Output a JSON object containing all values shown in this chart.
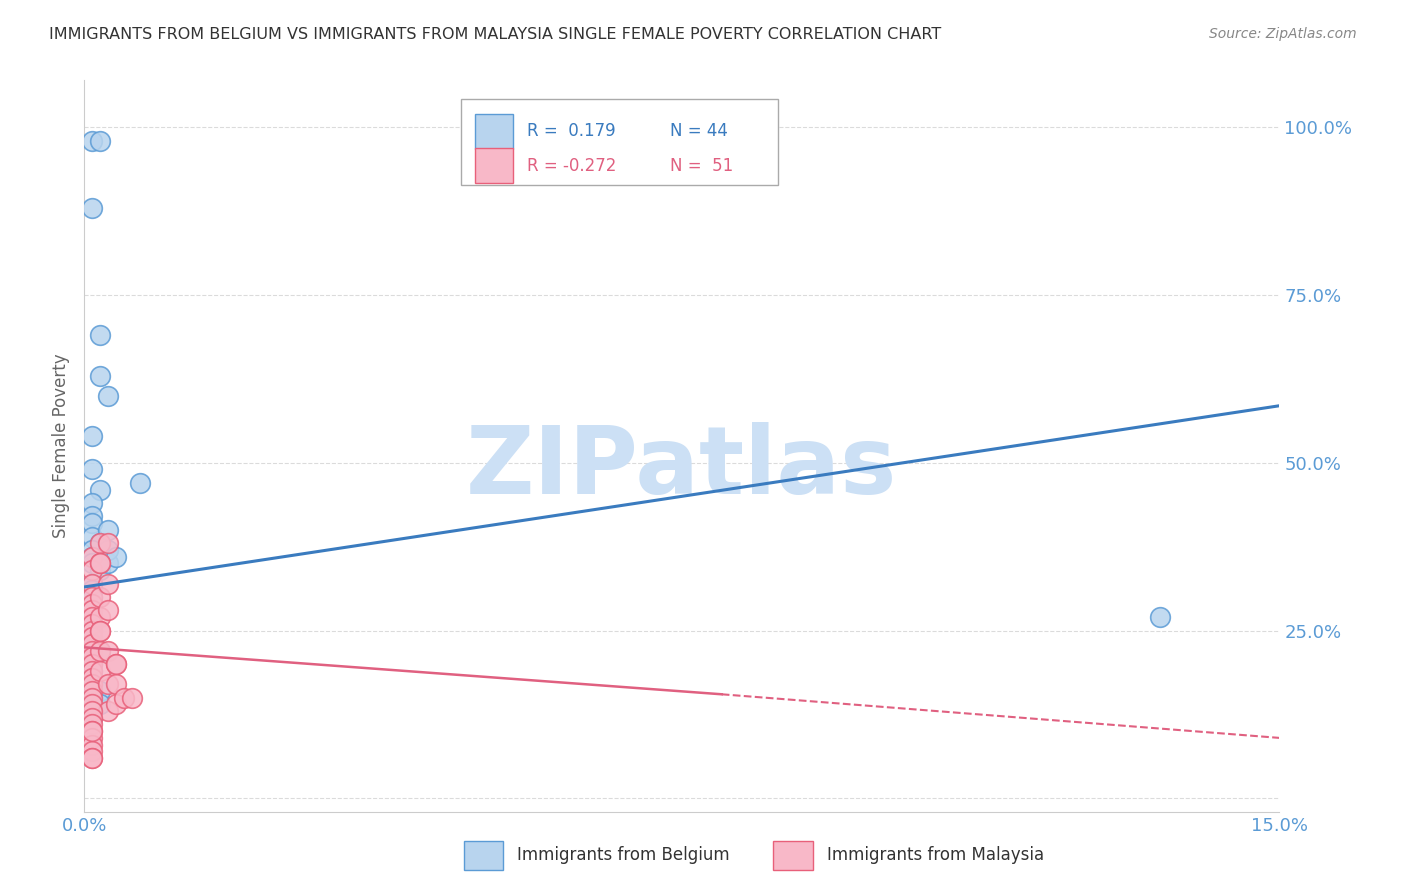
{
  "title": "IMMIGRANTS FROM BELGIUM VS IMMIGRANTS FROM MALAYSIA SINGLE FEMALE POVERTY CORRELATION CHART",
  "source": "Source: ZipAtlas.com",
  "ylabel": "Single Female Poverty",
  "xlim": [
    0.0,
    0.15
  ],
  "ylim": [
    -0.02,
    1.07
  ],
  "yticks": [
    0.0,
    0.25,
    0.5,
    0.75,
    1.0
  ],
  "ytick_labels": [
    "",
    "25.0%",
    "50.0%",
    "75.0%",
    "100.0%"
  ],
  "xticks": [
    0.0,
    0.03,
    0.06,
    0.09,
    0.12,
    0.15
  ],
  "xtick_labels": [
    "0.0%",
    "",
    "",
    "",
    "",
    "15.0%"
  ],
  "belgium_color": "#b8d4ee",
  "malaysia_color": "#f8b8c8",
  "belgium_edge": "#5b9bd5",
  "malaysia_edge": "#e8607a",
  "trend_belgium_color": "#3a7bbf",
  "trend_malaysia_color": "#e06080",
  "trend_belgium_x0": 0.0,
  "trend_belgium_y0": 0.315,
  "trend_belgium_x1": 0.15,
  "trend_belgium_y1": 0.585,
  "trend_malaysia_x0": 0.0,
  "trend_malaysia_y0": 0.225,
  "trend_malaysia_x1": 0.08,
  "trend_malaysia_y1": 0.155,
  "trend_malaysia_dash_x0": 0.08,
  "trend_malaysia_dash_y0": 0.155,
  "trend_malaysia_dash_x1": 0.15,
  "trend_malaysia_dash_y1": 0.09,
  "legend_R_belgium": "R =  0.179",
  "legend_N_belgium": "N = 44",
  "legend_R_malaysia": "R = -0.272",
  "legend_N_malaysia": "N =  51",
  "legend_label_belgium": "Immigrants from Belgium",
  "legend_label_malaysia": "Immigrants from Malaysia",
  "watermark": "ZIPatlas",
  "watermark_color": "#cce0f5",
  "background_color": "#ffffff",
  "belgium_x": [
    0.001,
    0.002,
    0.001,
    0.002,
    0.002,
    0.003,
    0.001,
    0.001,
    0.002,
    0.001,
    0.001,
    0.001,
    0.001,
    0.002,
    0.001,
    0.001,
    0.001,
    0.002,
    0.001,
    0.001,
    0.001,
    0.001,
    0.001,
    0.001,
    0.001,
    0.001,
    0.001,
    0.001,
    0.002,
    0.001,
    0.001,
    0.001,
    0.001,
    0.001,
    0.002,
    0.001,
    0.002,
    0.003,
    0.003,
    0.003,
    0.004,
    0.001,
    0.135,
    0.007
  ],
  "belgium_y": [
    0.98,
    0.98,
    0.88,
    0.69,
    0.63,
    0.6,
    0.54,
    0.49,
    0.46,
    0.44,
    0.42,
    0.41,
    0.39,
    0.38,
    0.37,
    0.36,
    0.35,
    0.34,
    0.32,
    0.31,
    0.3,
    0.29,
    0.28,
    0.27,
    0.26,
    0.25,
    0.24,
    0.23,
    0.22,
    0.21,
    0.2,
    0.19,
    0.18,
    0.17,
    0.16,
    0.15,
    0.14,
    0.35,
    0.37,
    0.4,
    0.36,
    0.12,
    0.27,
    0.47
  ],
  "malaysia_x": [
    0.001,
    0.001,
    0.001,
    0.001,
    0.001,
    0.001,
    0.001,
    0.001,
    0.001,
    0.001,
    0.001,
    0.001,
    0.001,
    0.001,
    0.001,
    0.001,
    0.001,
    0.001,
    0.001,
    0.001,
    0.002,
    0.002,
    0.002,
    0.002,
    0.002,
    0.002,
    0.002,
    0.003,
    0.003,
    0.003,
    0.003,
    0.003,
    0.004,
    0.004,
    0.004,
    0.005,
    0.001,
    0.001,
    0.001,
    0.001,
    0.001,
    0.001,
    0.001,
    0.001,
    0.001,
    0.002,
    0.002,
    0.003,
    0.004,
    0.006,
    0.001
  ],
  "malaysia_y": [
    0.36,
    0.34,
    0.32,
    0.3,
    0.29,
    0.28,
    0.27,
    0.26,
    0.25,
    0.24,
    0.23,
    0.22,
    0.21,
    0.2,
    0.19,
    0.18,
    0.17,
    0.16,
    0.15,
    0.14,
    0.38,
    0.35,
    0.3,
    0.27,
    0.25,
    0.22,
    0.19,
    0.32,
    0.28,
    0.22,
    0.17,
    0.13,
    0.2,
    0.17,
    0.14,
    0.15,
    0.13,
    0.12,
    0.11,
    0.1,
    0.09,
    0.08,
    0.07,
    0.06,
    0.06,
    0.35,
    0.25,
    0.38,
    0.2,
    0.15,
    0.1
  ],
  "grid_color": "#cccccc",
  "title_color": "#333333",
  "axis_color": "#5b9bd5"
}
